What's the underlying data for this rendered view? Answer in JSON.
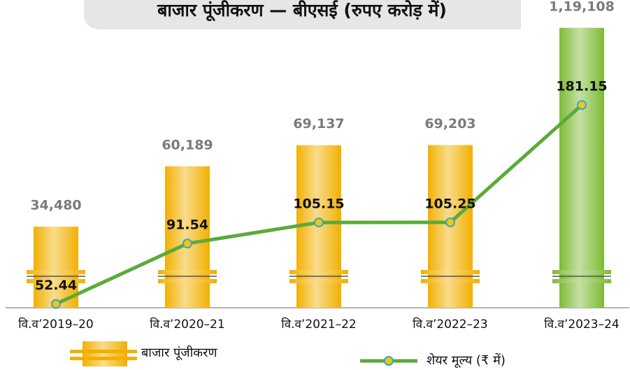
{
  "chart_data": {
    "type": "bar",
    "title": "बाजार पूंजीकरण — बीएसई (रुपए करोड़ में)",
    "categories": [
      "वि.व’2019–20",
      "वि.व’2020–21",
      "वि.व’2021–22",
      "वि.व’2022–23",
      "वि.व’2023–24"
    ],
    "series": [
      {
        "name": "बाजार पूंजीकरण",
        "type": "bar",
        "color": "#f2b000",
        "colors": [
          "#f2b000",
          "#f2b000",
          "#f2b000",
          "#f2b000",
          "#7dbb34"
        ],
        "values": [
          34480,
          60189,
          69137,
          69203,
          119108
        ],
        "value_labels": [
          "34,480",
          "60,189",
          "69,137",
          "69,203",
          "1,19,108"
        ]
      },
      {
        "name": "शेयर मूल्य (₹ में)",
        "type": "line",
        "axis": "y2",
        "color": "#5aab3a",
        "marker_color": "#f7c600",
        "marker_edge": "#2ea6da",
        "values": [
          52.44,
          91.54,
          105.15,
          105.25,
          181.15
        ]
      }
    ],
    "ylim": [
      0,
      125000
    ],
    "y2lim": [
      50,
      240
    ]
  }
}
